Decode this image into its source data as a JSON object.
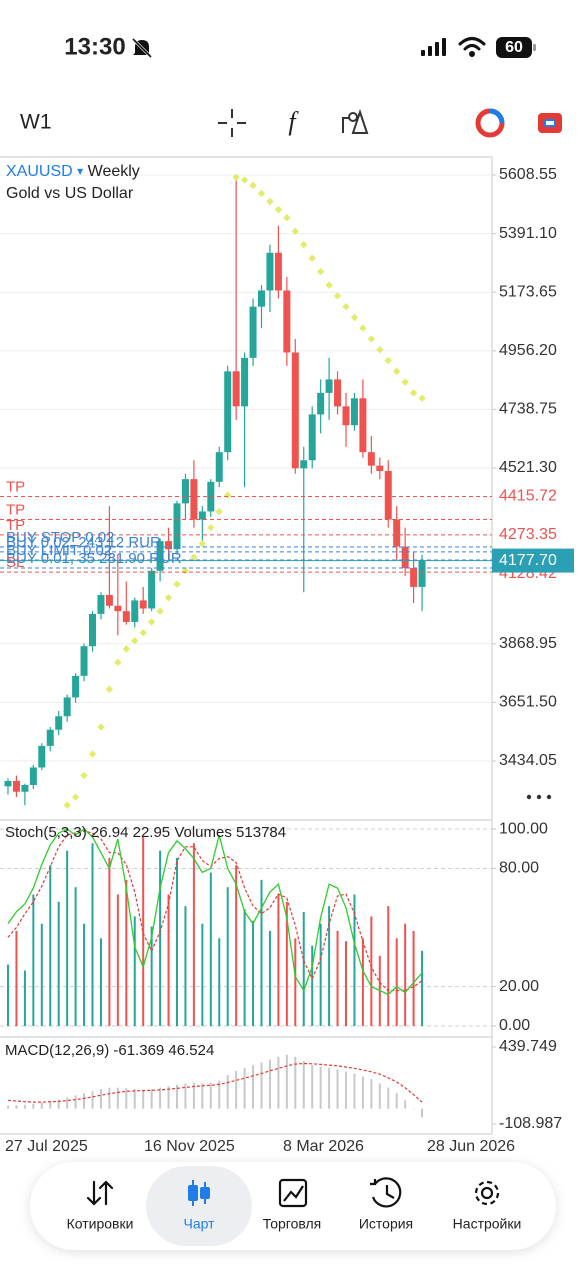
{
  "status_bar": {
    "time": "13:30",
    "battery": "60"
  },
  "toolbar": {
    "timeframe": "W1",
    "function_icon": "f"
  },
  "chart_data": {
    "type": "candlestick",
    "symbol": "XAUUSD",
    "symbol_menu": "▾",
    "period": "Weekly",
    "description": "Gold vs US Dollar",
    "up_color": "#26a69a",
    "down_color": "#ef5350",
    "open": [
      3340,
      3360,
      3320,
      3345,
      3410,
      3490,
      3550,
      3600,
      3670,
      3750,
      3860,
      3980,
      4050,
      4010,
      3990,
      3950,
      4030,
      4000,
      4140,
      4250,
      4220,
      4390,
      4480,
      4330,
      4360,
      4470,
      4580,
      4880,
      4750,
      4930,
      5120,
      5180,
      5320,
      5180,
      4950,
      4520,
      4550,
      4720,
      4800,
      4850,
      4750,
      4680,
      4780,
      4580,
      4530,
      4510,
      4330,
      4230,
      4150,
      4080
    ],
    "high": [
      3370,
      3380,
      3350,
      3420,
      3500,
      3560,
      3620,
      3680,
      3760,
      3870,
      3990,
      4060,
      4380,
      4200,
      4100,
      4040,
      4080,
      4150,
      4260,
      4300,
      4400,
      4500,
      4550,
      4380,
      4480,
      4600,
      4900,
      5608,
      4950,
      5150,
      5200,
      5350,
      5420,
      5230,
      5000,
      4600,
      4750,
      4850,
      4930,
      4880,
      4800,
      4800,
      4850,
      4640,
      4560,
      4550,
      4380,
      4300,
      4210,
      4200
    ],
    "low": [
      3310,
      3300,
      3270,
      3330,
      3400,
      3470,
      3530,
      3580,
      3650,
      3730,
      3840,
      3960,
      4000,
      3900,
      3940,
      3930,
      3980,
      3990,
      4100,
      4180,
      4200,
      4330,
      4300,
      4250,
      4340,
      4450,
      4550,
      4700,
      4450,
      4900,
      5040,
      5100,
      5150,
      4900,
      4500,
      4060,
      4520,
      4650,
      4700,
      4720,
      4600,
      4660,
      4560,
      4500,
      4480,
      4300,
      4180,
      4120,
      4020,
      3990
    ],
    "close": [
      3360,
      3320,
      3345,
      3410,
      3490,
      3550,
      3600,
      3670,
      3750,
      3860,
      3980,
      4050,
      4010,
      3990,
      3950,
      4030,
      4000,
      4140,
      4250,
      4220,
      4390,
      4480,
      4330,
      4360,
      4470,
      4580,
      4880,
      4750,
      4930,
      5120,
      5180,
      5320,
      5180,
      4950,
      4520,
      4550,
      4720,
      4800,
      4850,
      4750,
      4680,
      4780,
      4580,
      4530,
      4510,
      4330,
      4230,
      4150,
      4080,
      4177.7
    ],
    "sar": {
      "color": "#e2ec6a",
      "values": [
        null,
        null,
        null,
        null,
        null,
        null,
        null,
        3270,
        3300,
        3380,
        3460,
        3560,
        3700,
        3800,
        3850,
        3880,
        3910,
        3950,
        3990,
        4040,
        4090,
        4140,
        4190,
        4240,
        4300,
        4360,
        4420,
        5600,
        5590,
        5570,
        5540,
        5510,
        5480,
        5450,
        5400,
        5350,
        5300,
        5250,
        5200,
        5160,
        5120,
        5080,
        5040,
        5000,
        4960,
        4920,
        4880,
        4840,
        4800,
        4780
      ]
    },
    "ylim": [
      3215.08,
      5675.34
    ],
    "yticks": [
      5608.55,
      {
        "value": 5391.1,
        "label": "5391.10"
      },
      5173.65,
      {
        "value": 4956.2,
        "label": "4956.20"
      },
      4738.75,
      {
        "value": 4521.3,
        "label": "4521.30"
      },
      3868.95,
      {
        "value": 3651.5,
        "label": "3651.50"
      },
      3434.05
    ],
    "grid": true,
    "order_lines": [
      {
        "label": "TP",
        "value": 4415.72,
        "color": "#ef5350"
      },
      {
        "label": "TP",
        "value": 4330,
        "color": "#ef5350"
      },
      {
        "label": "TP",
        "value": 4273.35,
        "color": "#ef5350"
      },
      {
        "label": "BUY STOP 0.02",
        "value": 4228,
        "color": "#3b82d6"
      },
      {
        "label": "BUY 0.02, 243.12 RUR",
        "value": 4210,
        "color": "#3b82d6"
      },
      {
        "label": "BUY LIMIT 0.02",
        "value": 4180,
        "color": "#3b82d6"
      },
      {
        "label": "BUY 0.01, 35 281.90 RUR",
        "value": 4150,
        "color": "#3b82d6"
      },
      {
        "label": "SL",
        "value": 4135,
        "color": "#ef5350"
      }
    ],
    "price_labels": [
      4415.72,
      4273.35,
      4128.42
    ],
    "price_label_color": "#ef5350",
    "last_price": {
      "value": 4177.7,
      "label": "4177.70",
      "color": "#2b9fb3"
    },
    "x_labels": [
      "27 Jul 2025",
      "16 Nov 2025",
      "8 Mar 2026",
      "28 Jun 2026"
    ],
    "stoch": {
      "name": "Stoch(5,3,3)",
      "volumes_name": "Volumes",
      "main_color": "#2ecc2e",
      "signal_color": "#e53935",
      "main": [
        52,
        58,
        62,
        70,
        82,
        92,
        98,
        100,
        97,
        100,
        96,
        88,
        80,
        95,
        70,
        40,
        30,
        45,
        70,
        88,
        94,
        90,
        85,
        78,
        80,
        97,
        80,
        72,
        58,
        52,
        60,
        68,
        72,
        55,
        25,
        18,
        30,
        55,
        72,
        70,
        60,
        42,
        28,
        20,
        18,
        16,
        20,
        17,
        22,
        26.94
      ],
      "signal": [
        45,
        50,
        57,
        63,
        71,
        81,
        91,
        97,
        98,
        99,
        98,
        95,
        88,
        88,
        82,
        68,
        47,
        38,
        48,
        62,
        84,
        91,
        91,
        84,
        81,
        85,
        86,
        83,
        70,
        61,
        57,
        60,
        67,
        65,
        51,
        33,
        24,
        34,
        52,
        66,
        67,
        57,
        43,
        30,
        22,
        18,
        18,
        18,
        20,
        22.95
      ],
      "volumes": [
        420000,
        650000,
        380000,
        900000,
        700000,
        1100000,
        850000,
        1200000,
        950000,
        700000,
        1250000,
        600000,
        1150000,
        900000,
        1000000,
        750000,
        1300000,
        680000,
        1200000,
        900000,
        1150000,
        820000,
        1250000,
        700000,
        1050000,
        600000,
        950000,
        1100000,
        800000,
        720000,
        1000000,
        650000,
        900000,
        850000,
        600000,
        780000,
        550000,
        700000,
        820000,
        650000,
        580000,
        900000,
        600000,
        750000,
        480000,
        820000,
        600000,
        700000,
        650000,
        513784
      ],
      "ylim": [
        -5.6,
        104.6
      ],
      "yticks": [
        {
          "value": 100,
          "label": "100.00"
        },
        {
          "value": 80,
          "label": "80.00"
        },
        {
          "value": 20,
          "label": "20.00"
        },
        {
          "value": 0,
          "label": "0.00"
        }
      ]
    },
    "macd": {
      "name": "MACD(12,26,9)",
      "hist_color": "#c8c8c8",
      "signal_color": "#e53935",
      "main": [
        20,
        25,
        28,
        35,
        45,
        55,
        65,
        80,
        95,
        110,
        125,
        140,
        150,
        150,
        145,
        140,
        135,
        140,
        150,
        160,
        170,
        180,
        185,
        180,
        185,
        200,
        240,
        270,
        290,
        310,
        330,
        350,
        370,
        385,
        370,
        340,
        310,
        300,
        290,
        280,
        265,
        250,
        230,
        210,
        180,
        150,
        110,
        60,
        0,
        -61.369
      ],
      "signal": [
        60,
        55,
        50,
        47,
        47,
        49,
        52,
        58,
        65,
        74,
        84,
        96,
        107,
        116,
        123,
        127,
        129,
        131,
        134,
        139,
        145,
        152,
        158,
        163,
        167,
        173,
        187,
        202,
        218,
        234,
        251,
        270,
        287,
        305,
        318,
        322,
        320,
        316,
        311,
        305,
        297,
        288,
        276,
        263,
        246,
        220,
        190,
        150,
        100,
        46.524
      ],
      "ylim": [
        -180.25,
        511.01
      ],
      "yticks": [
        439.749,
        -108.987
      ]
    }
  },
  "bottom_nav": {
    "items": [
      "Котировки",
      "Чарт",
      "Торговля",
      "История",
      "Настройки"
    ],
    "active_color": "#1e7ee6"
  }
}
